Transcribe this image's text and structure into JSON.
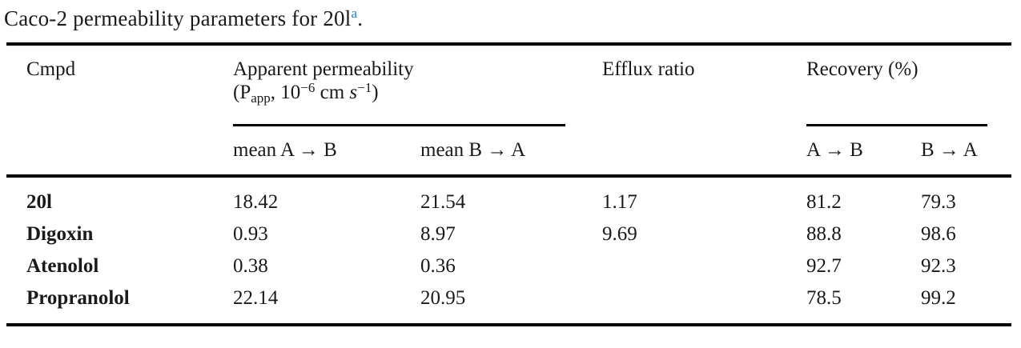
{
  "title": {
    "text": "Caco-2 permeability parameters for 20l",
    "footnote_marker": "a",
    "suffix": "."
  },
  "colors": {
    "footnote_blue": "#2b7ab6",
    "text": "#1a1a1a",
    "rule": "#000000"
  },
  "table": {
    "header": {
      "cmpd": "Cmpd",
      "apparent_permeability": {
        "line1": "Apparent permeability",
        "p_open": "(P",
        "p_sub": "app",
        "after_sub": ", 10",
        "exp1": "−6",
        "unit_cm": " cm ",
        "unit_s": "s",
        "exp2": "−1",
        "close_paren": ")"
      },
      "efflux_ratio": "Efflux ratio",
      "recovery": "Recovery (%)",
      "sub": {
        "mean_ab": "mean A → B",
        "mean_ba": "mean B → A",
        "rec_ab": "A → B",
        "rec_ba": "B → A"
      }
    },
    "rows": [
      {
        "cmpd": "20l",
        "mean_ab": "18.42",
        "mean_ba": "21.54",
        "efflux_ratio": "1.17",
        "recovery_ab": "81.2",
        "recovery_ba": "79.3"
      },
      {
        "cmpd": "Digoxin",
        "mean_ab": "0.93",
        "mean_ba": "8.97",
        "efflux_ratio": "9.69",
        "recovery_ab": "88.8",
        "recovery_ba": "98.6"
      },
      {
        "cmpd": "Atenolol",
        "mean_ab": "0.38",
        "mean_ba": "0.36",
        "efflux_ratio": "",
        "recovery_ab": "92.7",
        "recovery_ba": "92.3"
      },
      {
        "cmpd": "Propranolol",
        "mean_ab": "22.14",
        "mean_ba": "20.95",
        "efflux_ratio": "",
        "recovery_ab": "78.5",
        "recovery_ba": "99.2"
      }
    ]
  }
}
